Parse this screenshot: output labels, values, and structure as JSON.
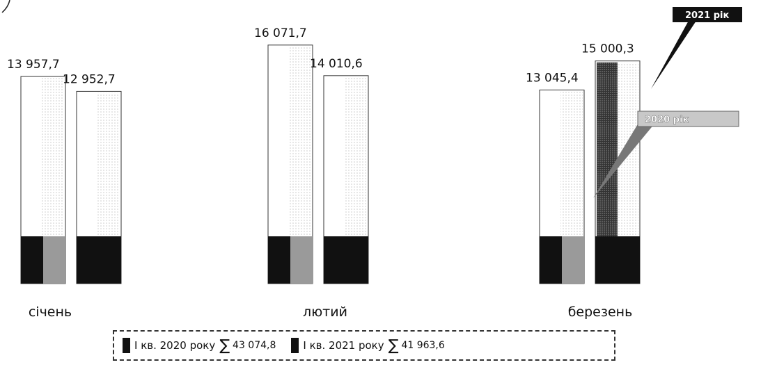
{
  "chart_data": {
    "type": "bar",
    "categories": [
      "січень",
      "лютий",
      "березень"
    ],
    "series": [
      {
        "name": "І кв. 2020 року",
        "values": [
          13957.7,
          16071.7,
          13045.4
        ],
        "total": "43 074,8"
      },
      {
        "name": "І кв. 2021 року",
        "values": [
          12952.7,
          14010.6,
          15000.3
        ],
        "total": "41 963,6"
      }
    ],
    "value_labels": [
      [
        "13 957,7",
        "16 071,7",
        "13 045,4"
      ],
      [
        "12 952,7",
        "14 010,6",
        "15 000,3"
      ]
    ],
    "callouts": {
      "y2021": "2021 рік",
      "y2020": "2020 рік"
    },
    "legend_sigma": "∑",
    "ylim": [
      0,
      17000
    ],
    "grid": false,
    "legend_position": "bottom",
    "colors": {
      "bar_fill": "#ffffff",
      "bar_stroke": "#333333",
      "base_dark": "#111111",
      "base_grey": "#9a9a9a",
      "texture": "#b5b5b5"
    }
  }
}
